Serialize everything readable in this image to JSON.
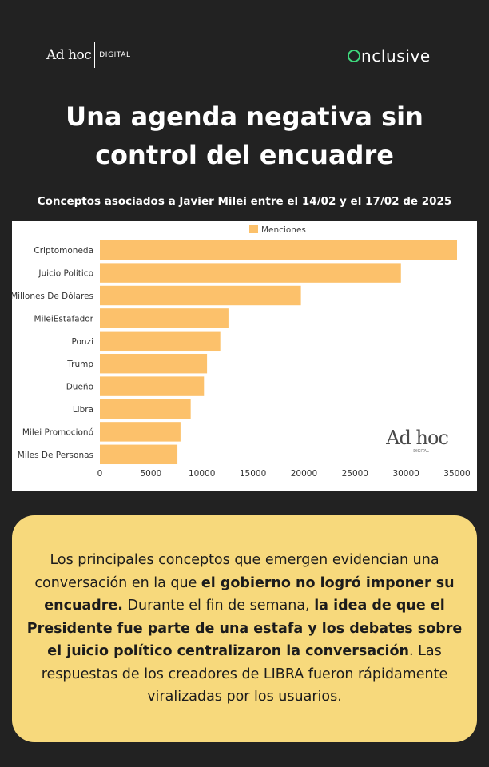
{
  "header": {
    "adhoc_brand": "Ad hoc",
    "adhoc_sub": "DIGITAL",
    "onclusive_text": "nclusive",
    "title_line1": "Una agenda negativa sin",
    "title_line2": "control del encuadre",
    "subtitle": "Conceptos asociados a Javier Milei entre el 14/02 y el 17/02 de 2025"
  },
  "chart_data": {
    "type": "bar",
    "orientation": "horizontal",
    "categories": [
      "Criptomoneda",
      "Juicio Político",
      "Millones De Dólares",
      "MileiEstafador",
      "Ponzi",
      "Trump",
      "Dueño",
      "Libra",
      "Milei Promocionó",
      "Miles De Personas"
    ],
    "series": [
      {
        "name": "Menciones",
        "values": [
          35000,
          29500,
          19700,
          12600,
          11800,
          10500,
          10200,
          8900,
          7900,
          7600
        ]
      }
    ],
    "xticks": [
      0,
      5000,
      10000,
      15000,
      20000,
      25000,
      30000,
      35000
    ],
    "xlim": [
      0,
      35000
    ],
    "legend": "top",
    "bar_color": "#fcc16b",
    "watermark": {
      "brand": "Ad hoc",
      "sub": "DIGITAL"
    }
  },
  "card": {
    "t1": "Los principales conceptos que emergen evidencian una conversación en la que ",
    "b1": "el gobierno no logró imponer su encuadre.",
    "t2": " Durante el fin de semana, ",
    "b2": "la idea de que el Presidente fue parte de una estafa y los debates sobre el juicio político centralizaron la conversación",
    "t3": ". Las respuestas de los creadores de LIBRA fueron rápidamente viralizadas por los usuarios.",
    "background": "#f7d97c"
  }
}
